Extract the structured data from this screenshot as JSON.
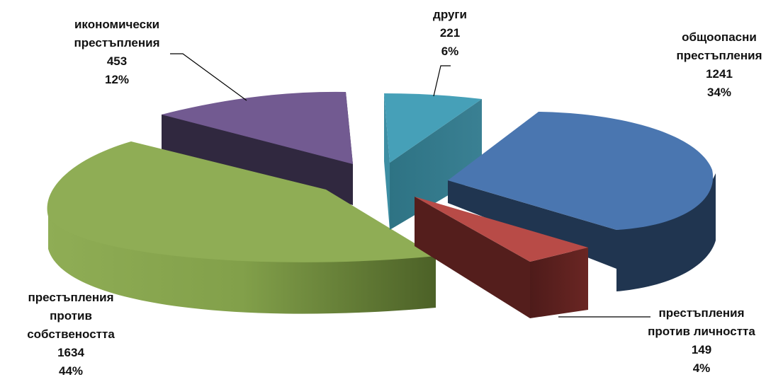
{
  "chart_data": {
    "type": "pie",
    "style": "3d-exploded",
    "legend": "none",
    "slices": [
      {
        "name": "общоопасни\nпрестъпления",
        "value": 1241,
        "percent": "34%",
        "color": "#4a76b0",
        "side_color": "#203550"
      },
      {
        "name": "престъпления\nпротив личността",
        "value": 149,
        "percent": "4%",
        "color": "#b84b47",
        "side_color": "#5a1f1d"
      },
      {
        "name": "престъпления\nпротив\nсобствеността",
        "value": 1634,
        "percent": "44%",
        "color": "#8fad55",
        "side_color": "#6a8a35"
      },
      {
        "name": "икономически\nпрестъпления",
        "value": 453,
        "percent": "12%",
        "color": "#725a91",
        "side_color": "#30283f"
      },
      {
        "name": "други",
        "value": 221,
        "percent": "6%",
        "color": "#46a0b8",
        "side_color": "#307888"
      }
    ]
  }
}
